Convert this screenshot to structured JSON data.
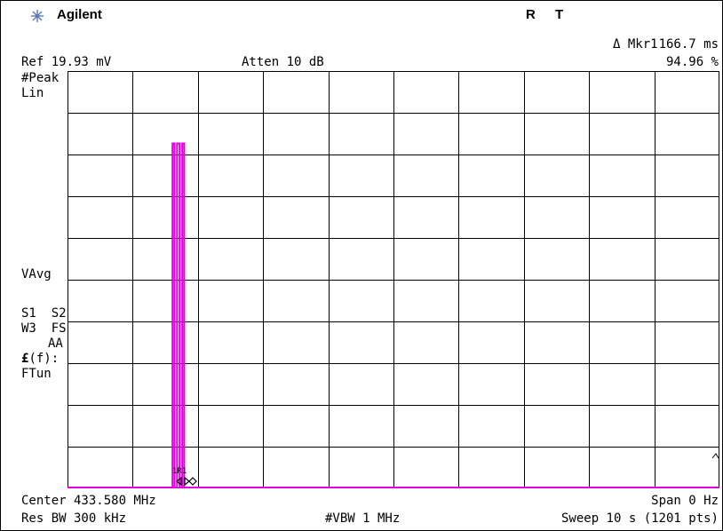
{
  "header": {
    "brand": "Agilent",
    "brand_icon": "agilent-spark-icon",
    "status_r": "R",
    "status_t": "T",
    "marker_label": "Δ Mkr1",
    "marker_time": "166.7 ms",
    "marker_value": "94.96 %",
    "ref_level": "Ref 19.93 mV",
    "attenuation": "Atten 10 dB"
  },
  "annotations": {
    "detector": "#Peak",
    "scale": "Lin",
    "vavg": "VAvg",
    "s1s2": "S1  S2",
    "w3fs": "W3  FS",
    "aa": "AA",
    "ff": "(f):",
    "ff_symbol": "£",
    "ftun": "FTun",
    "marker_tag": "1R1"
  },
  "footer": {
    "center": "Center 433.580 MHz",
    "span": "Span 0 Hz",
    "res_bw": "Res BW 300 kHz",
    "vbw": "#VBW 1 MHz",
    "sweep": "Sweep 10 s (1201 pts)"
  },
  "colors": {
    "trace": "#e000e0",
    "grid": "#000000",
    "background": "#ffffff"
  },
  "chart_data": {
    "type": "line",
    "grid_divisions": {
      "x": 10,
      "y": 10
    },
    "x_range_s": [
      0,
      10
    ],
    "y_range_mV": [
      0,
      19.93
    ],
    "series": [
      {
        "points_s_mV": [
          [
            0,
            0
          ],
          [
            1.61,
            0
          ],
          [
            1.61,
            16.5
          ],
          [
            1.64,
            16.5
          ],
          [
            1.64,
            0
          ],
          [
            1.68,
            0
          ],
          [
            1.68,
            16.5
          ],
          [
            1.72,
            16.5
          ],
          [
            1.72,
            0
          ],
          [
            1.76,
            0
          ],
          [
            1.76,
            16.5
          ],
          [
            1.79,
            16.5
          ],
          [
            1.79,
            0
          ],
          [
            10,
            0
          ]
        ]
      }
    ]
  }
}
